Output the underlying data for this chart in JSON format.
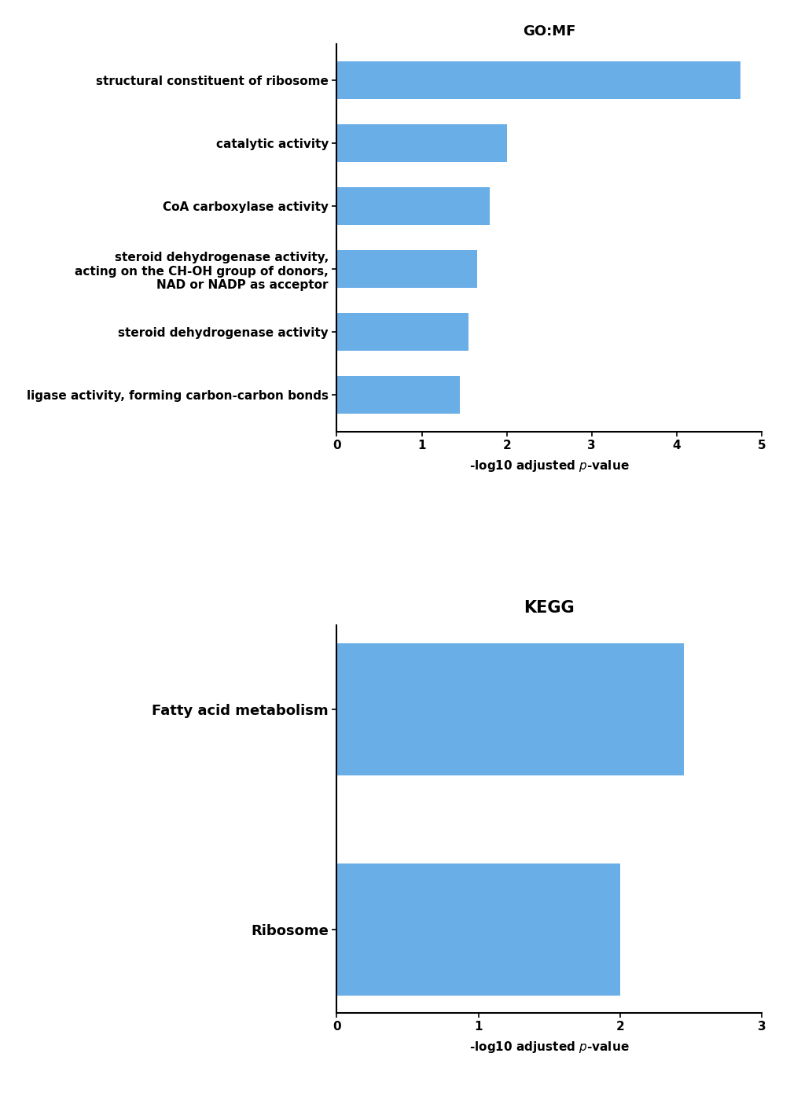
{
  "go_mf": {
    "title": "GO:MF",
    "categories": [
      "structural constituent of ribosome",
      "catalytic activity",
      "CoA carboxylase activity",
      "steroid dehydrogenase activity,\nacting on the CH-OH group of donors,\nNAD or NADP as acceptor",
      "steroid dehydrogenase activity",
      "ligase activity, forming carbon-carbon bonds"
    ],
    "values": [
      4.75,
      2.0,
      1.8,
      1.65,
      1.55,
      1.45
    ],
    "bar_color": "#6aaee8",
    "xlim": [
      0,
      5
    ],
    "xticks": [
      0,
      1,
      2,
      3,
      4,
      5
    ],
    "xlabel_normal": "-log10 adjusted ",
    "xlabel_italic": "p",
    "xlabel_normal2": "-value"
  },
  "kegg": {
    "title": "KEGG",
    "categories": [
      "Fatty acid metabolism",
      "Ribosome"
    ],
    "values": [
      2.45,
      2.0
    ],
    "bar_color": "#6aaee8",
    "xlim": [
      0,
      3
    ],
    "xticks": [
      0,
      1,
      2,
      3
    ],
    "xlabel_normal": "-log10 adjusted ",
    "xlabel_italic": "p",
    "xlabel_normal2": "-value"
  },
  "background_color": "#ffffff"
}
